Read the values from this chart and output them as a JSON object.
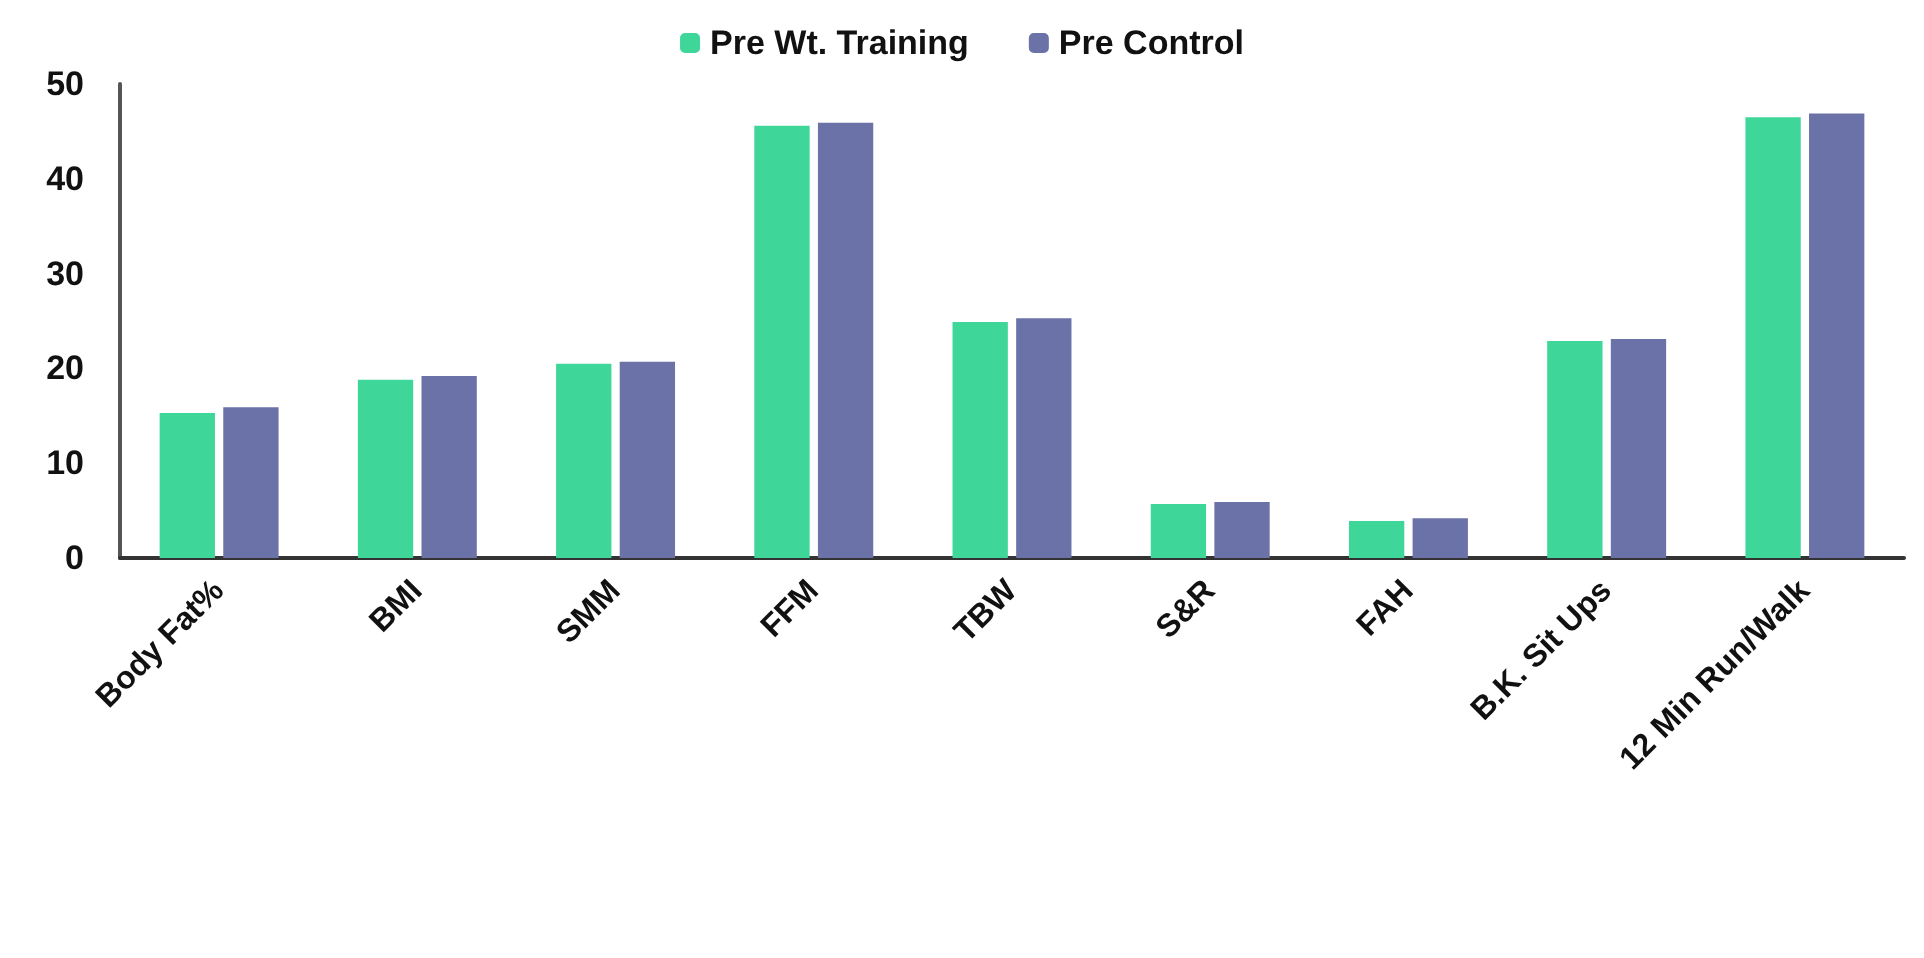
{
  "chart_data": {
    "type": "bar",
    "categories": [
      "Body Fat%",
      "BMI",
      "SMM",
      "FFM",
      "TBW",
      "S&R",
      "FAH",
      "B.K. Sit Ups",
      "12 Min Run/Walk"
    ],
    "series": [
      {
        "name": "Pre Wt. Training",
        "color": "#3fd69a",
        "values": [
          15.3,
          18.8,
          20.5,
          45.6,
          24.9,
          5.7,
          3.9,
          22.9,
          46.5
        ]
      },
      {
        "name": "Pre Control",
        "color": "#6b72a8",
        "values": [
          15.9,
          19.2,
          20.7,
          45.9,
          25.3,
          5.9,
          4.2,
          23.1,
          46.9
        ]
      }
    ],
    "ylim": [
      0,
      50
    ],
    "yticks": [
      0,
      10,
      20,
      30,
      40,
      50
    ],
    "grid": false,
    "legend": "top"
  }
}
